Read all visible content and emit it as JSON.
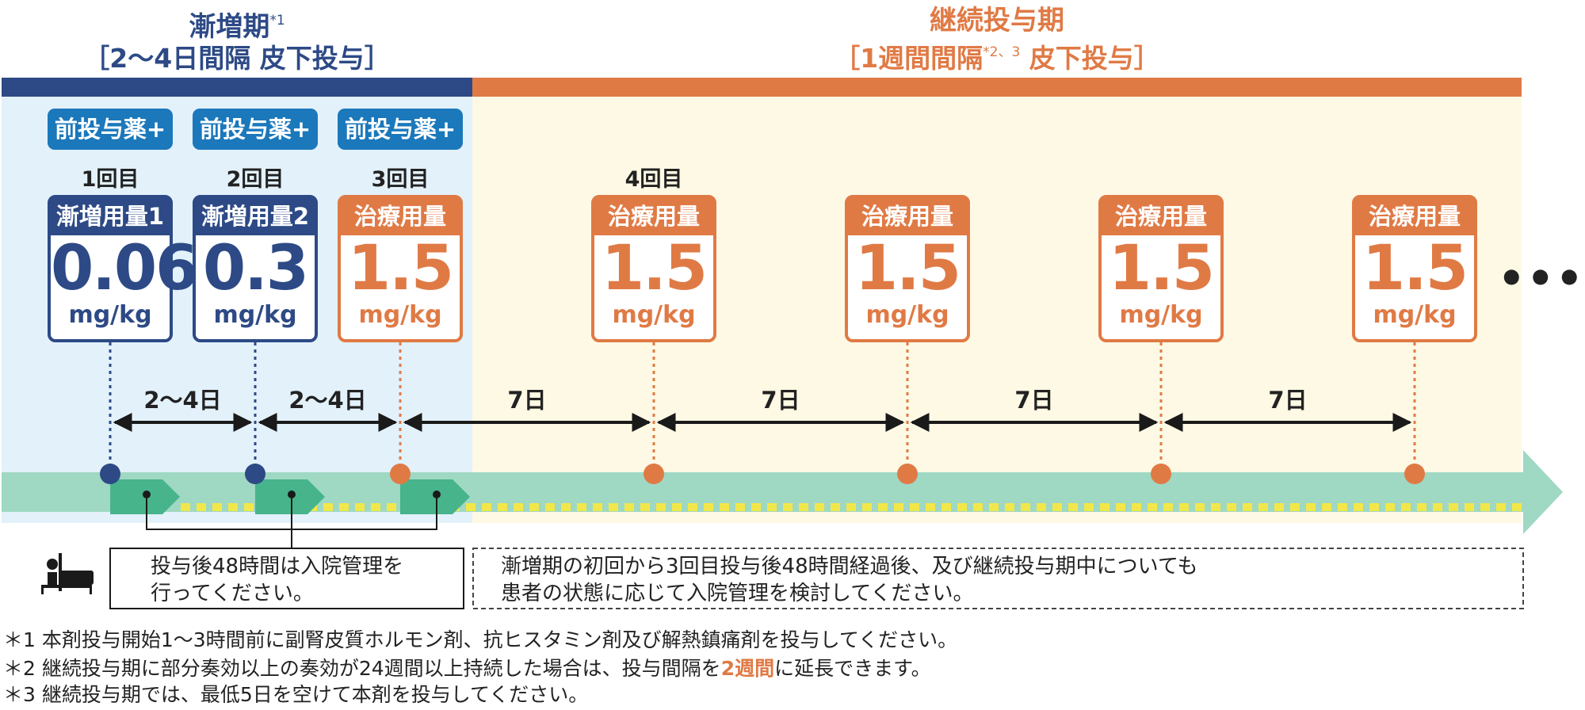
{
  "phases": [
    {
      "title_line1": "漸増期",
      "title_note": "*1",
      "title_line2": "［2〜4日間隔 皮下投与］"
    },
    {
      "title_line1": "継続投与期",
      "title_line2_pre": "［1週間間隔",
      "title_note": "*2、3",
      "title_line2_post": " 皮下投与］"
    }
  ],
  "premed_label": "前投与薬+",
  "doses": [
    {
      "count": "1回目",
      "header": "漸増用量1",
      "value": "0.06",
      "unit": "mg/kg",
      "color": "#2d4a86"
    },
    {
      "count": "2回目",
      "header": "漸増用量2",
      "value": "0.3",
      "unit": "mg/kg",
      "color": "#2d4a86"
    },
    {
      "count": "3回目",
      "header": "治療用量",
      "value": "1.5",
      "unit": "mg/kg",
      "color": "#e07a45"
    },
    {
      "count": "4回目",
      "header": "治療用量",
      "value": "1.5",
      "unit": "mg/kg",
      "color": "#e07a45"
    },
    {
      "count": "",
      "header": "治療用量",
      "value": "1.5",
      "unit": "mg/kg",
      "color": "#e07a45"
    },
    {
      "count": "",
      "header": "治療用量",
      "value": "1.5",
      "unit": "mg/kg",
      "color": "#e07a45"
    },
    {
      "count": "",
      "header": "治療用量",
      "value": "1.5",
      "unit": "mg/kg",
      "color": "#e07a45"
    }
  ],
  "continuation_mark": "•••",
  "intervals": [
    "2〜4日",
    "2〜4日",
    "7日",
    "7日",
    "7日",
    "7日"
  ],
  "hospital_note_1": [
    "投与後48時間は入院管理を",
    "行ってください。"
  ],
  "hospital_note_2": [
    "漸増期の初回から3回目投与後48時間経過後、及び継続投与期中についても",
    "患者の状態に応じて入院管理を検討してください。"
  ],
  "footnotes": [
    {
      "mark": "＊1",
      "text": "本剤投与開始1〜3時間前に副腎皮質ホルモン剤、抗ヒスタミン剤及び解熱鎮痛剤を投与してください。"
    },
    {
      "mark": "＊2",
      "text_pre": "継続投与期に部分奏効以上の奏効が24週間以上持続した場合は、投与間隔を",
      "text_em": "2週間",
      "text_post": "に延長できます。"
    },
    {
      "mark": "＊3",
      "text": "継続投与期では、最低5日を空けて本剤を投与してください。"
    }
  ],
  "colors": {
    "navy": "#2d4a86",
    "orange": "#e07a45",
    "blue_button": "#1b78bb",
    "teal_band": "#9fd8c3",
    "teal_arrow": "#47b48c",
    "yellow_dash": "#f2e74a",
    "light_blue_bg": "#e3f1fb",
    "light_yellow_bg": "#fdf9e4"
  },
  "icons": {
    "hospital": "hospital-bed-icon"
  }
}
